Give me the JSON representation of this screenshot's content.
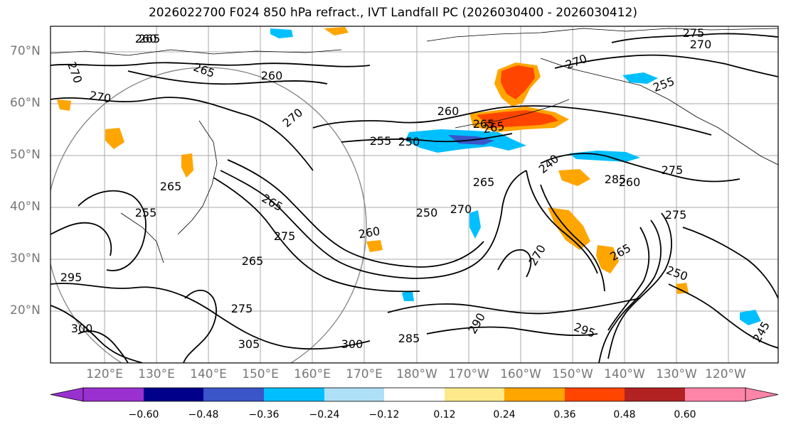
{
  "title": "2026022700 F024 850 hPa refract., IVT Landfall PC (2026030400 - 2026030412)",
  "latitude_labels": [
    "70°N",
    "60°N",
    "50°N",
    "40°N",
    "30°N",
    "20°N"
  ],
  "longitude_labels": [
    "120°E",
    "130°E",
    "140°E",
    "150°E",
    "160°E",
    "170°E",
    "180°W",
    "170°W",
    "160°W",
    "150°W",
    "140°W",
    "130°W",
    "120°W"
  ],
  "contour_labels": [
    "275",
    "270",
    "260",
    "270",
    "265",
    "270",
    "260",
    "265",
    "270",
    "255",
    "260",
    "270",
    "265",
    "255",
    "250",
    "265",
    "265",
    "265",
    "250",
    "265",
    "270",
    "260",
    "275",
    "255",
    "265",
    "275",
    "275",
    "295",
    "300",
    "305",
    "300",
    "285",
    "290",
    "295",
    "285",
    "245",
    "275",
    "250",
    "240",
    "260",
    "265",
    "270"
  ],
  "colorbar": {
    "ticks": [
      "−0.60",
      "−0.48",
      "−0.36",
      "−0.24",
      "−0.12",
      "0.12",
      "0.24",
      "0.36",
      "0.48",
      "0.60"
    ],
    "colors": {
      "under": "#9b30d0",
      "bins": [
        "#9b30d0",
        "#00008b",
        "#3a55c8",
        "#00bfff",
        "#aee0f8",
        "#ffffff",
        "#ffe98a",
        "#ffa500",
        "#ff4500",
        "#b22222",
        "#ff85a8"
      ],
      "over": "#ff85a8"
    }
  },
  "colors": {
    "contour": "#000000",
    "grid": "#a8a8a8",
    "negative_anomaly": "#00bfff",
    "positive_anomaly": "#ffa500",
    "strong_positive": "#ff4500"
  }
}
